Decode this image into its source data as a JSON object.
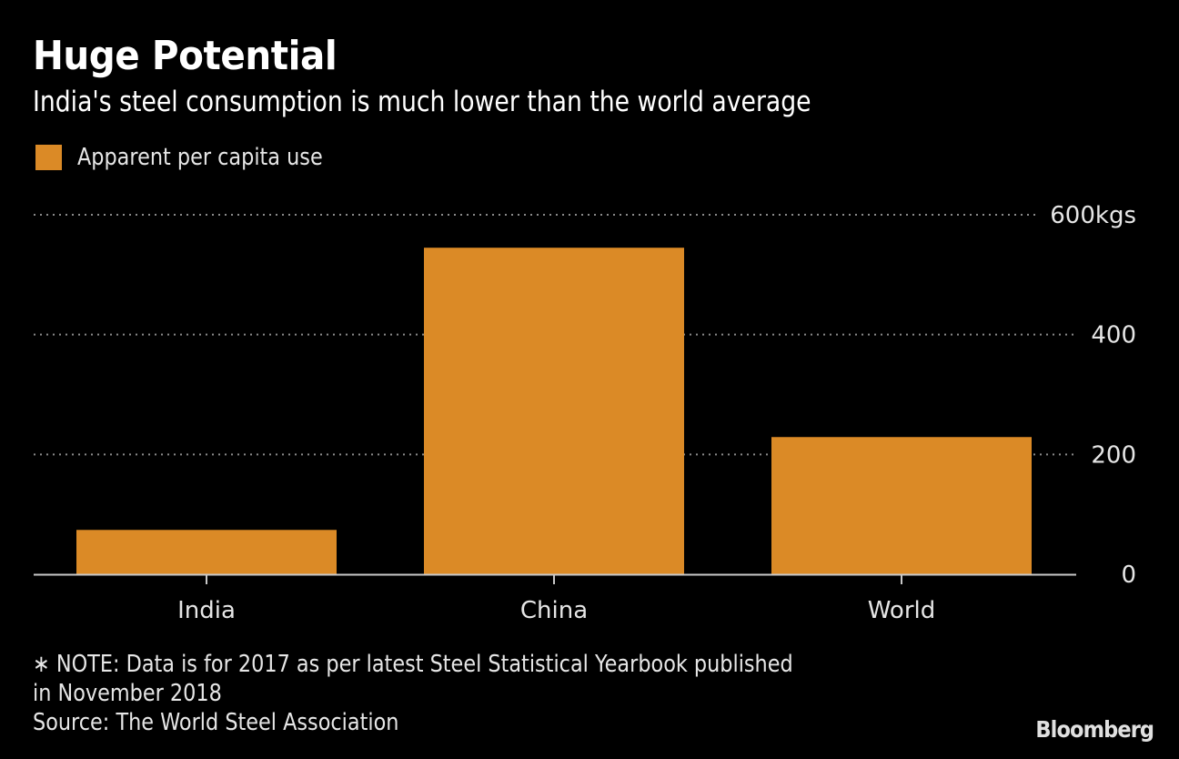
{
  "header": {
    "title": "Huge Potential",
    "subtitle": "India's steel consumption is much lower than the world average"
  },
  "legend": {
    "label": "Apparent per capita use",
    "color": "#DB8A26"
  },
  "footer": {
    "note_line1": "∗ NOTE: Data is for 2017 as per latest Steel Statistical Yearbook published",
    "note_line2": "in November 2018",
    "source": "Source: The World Steel Association",
    "brand": "Bloomberg"
  },
  "chart_data": {
    "type": "bar",
    "title": "Huge Potential",
    "subtitle": "India's steel consumption is much lower than the world average",
    "categories": [
      "India",
      "China",
      "World"
    ],
    "series": [
      {
        "name": "Apparent per capita use",
        "color": "#DB8A26",
        "values": [
          74,
          545,
          229
        ]
      }
    ],
    "xlabel": "",
    "ylabel": "",
    "unit": "kgs",
    "ylim": [
      0,
      600
    ],
    "yticks": [
      0,
      200,
      400,
      600
    ],
    "ytick_labels": [
      "0",
      "200",
      "400",
      "600kgs"
    ],
    "grid": true,
    "grid_style": "dotted",
    "y_axis_position": "right",
    "legend_position": "top-left"
  }
}
